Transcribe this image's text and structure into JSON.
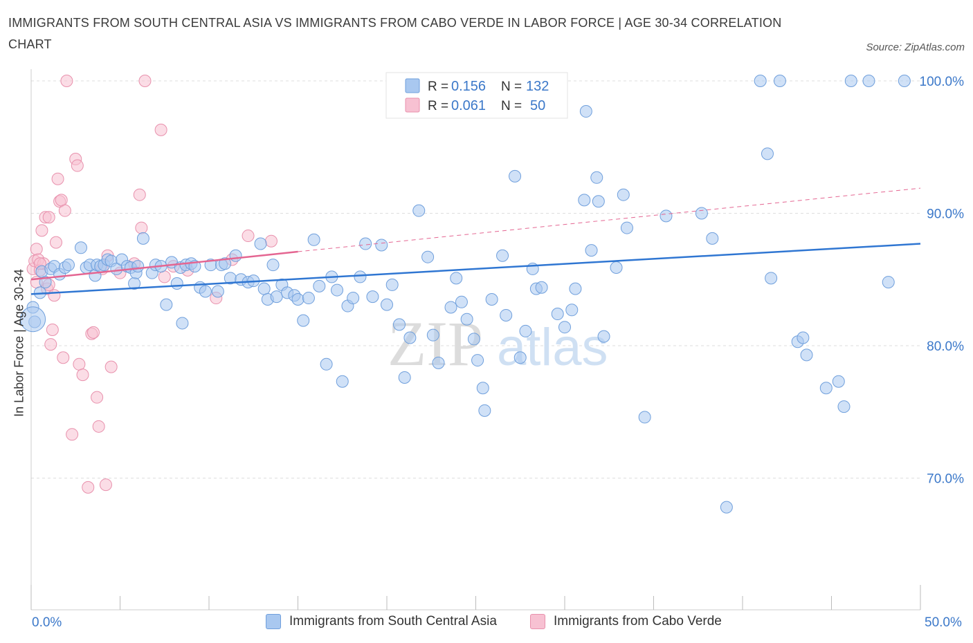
{
  "title": "IMMIGRANTS FROM SOUTH CENTRAL ASIA VS IMMIGRANTS FROM CABO VERDE IN LABOR FORCE | AGE 30-34 CORRELATION CHART",
  "source": "Source: ZipAtlas.com",
  "colors": {
    "blue_fill": "#a9c8f0",
    "blue_stroke": "#6f9fdc",
    "blue_line": "#2f76d2",
    "pink_fill": "#f7c1d2",
    "pink_stroke": "#e890ac",
    "pink_line": "#e46591",
    "axis_text": "#3b78c9",
    "watermark": "#d8d8d8"
  },
  "legend": {
    "series1": "Immigrants from South Central Asia",
    "series2": "Immigrants from Cabo Verde"
  },
  "stats": {
    "r_label": "R =",
    "n_label": "N =",
    "series1": {
      "r": "0.156",
      "n": "132"
    },
    "series2": {
      "r": "0.061",
      "n": "50"
    }
  },
  "watermark": {
    "zip": "ZIP",
    "atlas": "atlas"
  },
  "chart_data": {
    "type": "scatter",
    "ylabel": "In Labor Force | Age 30-34",
    "xlim": [
      0,
      50
    ],
    "ylim": [
      60,
      104
    ],
    "x_tick_labels": [
      "0.0%",
      "50.0%"
    ],
    "y_ticks": [
      70,
      80,
      90,
      100
    ],
    "y_tick_labels": [
      "70.0%",
      "80.0%",
      "90.0%",
      "100.0%"
    ],
    "grid": "horizontal dashed",
    "series": [
      {
        "name": "Immigrants from South Central Asia",
        "color": "#a9c8f0",
        "trend": {
          "x": [
            0,
            50
          ],
          "y": [
            83.9,
            87.7
          ]
        },
        "points": [
          [
            0.1,
            82.9
          ],
          [
            0.2,
            81.8
          ],
          [
            0.5,
            84.0
          ],
          [
            0.6,
            85.6
          ],
          [
            0.8,
            84.8
          ],
          [
            1.1,
            85.8
          ],
          [
            1.3,
            86.0
          ],
          [
            1.6,
            85.4
          ],
          [
            1.9,
            85.9
          ],
          [
            2.1,
            86.1
          ],
          [
            2.8,
            87.4
          ],
          [
            3.1,
            85.9
          ],
          [
            3.3,
            86.1
          ],
          [
            3.6,
            85.3
          ],
          [
            3.7,
            86.1
          ],
          [
            3.9,
            86.0
          ],
          [
            4.1,
            86.1
          ],
          [
            4.3,
            86.5
          ],
          [
            4.5,
            86.4
          ],
          [
            4.8,
            85.8
          ],
          [
            5.1,
            86.5
          ],
          [
            5.4,
            86.0
          ],
          [
            5.6,
            85.9
          ],
          [
            5.8,
            84.7
          ],
          [
            5.9,
            85.5
          ],
          [
            6.0,
            86.0
          ],
          [
            6.3,
            88.1
          ],
          [
            6.8,
            85.5
          ],
          [
            7.0,
            86.1
          ],
          [
            7.3,
            86.0
          ],
          [
            7.6,
            83.1
          ],
          [
            7.9,
            86.3
          ],
          [
            8.2,
            84.7
          ],
          [
            8.4,
            85.9
          ],
          [
            8.5,
            81.7
          ],
          [
            8.7,
            86.1
          ],
          [
            9.0,
            86.2
          ],
          [
            9.2,
            86.0
          ],
          [
            9.5,
            84.4
          ],
          [
            9.8,
            84.1
          ],
          [
            10.1,
            86.1
          ],
          [
            10.5,
            84.1
          ],
          [
            10.7,
            86.1
          ],
          [
            10.9,
            86.2
          ],
          [
            11.2,
            85.1
          ],
          [
            11.5,
            86.8
          ],
          [
            11.8,
            85.0
          ],
          [
            12.2,
            84.8
          ],
          [
            12.5,
            84.9
          ],
          [
            12.9,
            87.7
          ],
          [
            13.1,
            84.3
          ],
          [
            13.3,
            83.5
          ],
          [
            13.6,
            86.1
          ],
          [
            13.8,
            83.7
          ],
          [
            14.1,
            84.6
          ],
          [
            14.4,
            84.0
          ],
          [
            14.8,
            83.8
          ],
          [
            15.0,
            83.5
          ],
          [
            15.3,
            81.9
          ],
          [
            15.6,
            83.6
          ],
          [
            15.9,
            88.0
          ],
          [
            16.2,
            84.5
          ],
          [
            16.6,
            78.6
          ],
          [
            16.9,
            85.2
          ],
          [
            17.2,
            84.2
          ],
          [
            17.5,
            77.3
          ],
          [
            17.8,
            83.0
          ],
          [
            18.1,
            83.6
          ],
          [
            18.5,
            85.2
          ],
          [
            18.8,
            87.7
          ],
          [
            19.2,
            83.7
          ],
          [
            19.7,
            87.6
          ],
          [
            20.0,
            83.1
          ],
          [
            20.3,
            84.6
          ],
          [
            20.7,
            81.6
          ],
          [
            21.0,
            77.6
          ],
          [
            21.3,
            80.6
          ],
          [
            21.8,
            90.2
          ],
          [
            22.3,
            86.7
          ],
          [
            22.6,
            80.8
          ],
          [
            22.9,
            78.7
          ],
          [
            23.6,
            82.9
          ],
          [
            23.9,
            85.1
          ],
          [
            24.2,
            83.3
          ],
          [
            24.5,
            82.0
          ],
          [
            24.9,
            80.5
          ],
          [
            25.1,
            78.9
          ],
          [
            25.4,
            76.8
          ],
          [
            25.5,
            75.1
          ],
          [
            25.9,
            83.5
          ],
          [
            26.5,
            86.8
          ],
          [
            26.7,
            82.3
          ],
          [
            27.2,
            92.8
          ],
          [
            27.5,
            79.1
          ],
          [
            27.8,
            81.1
          ],
          [
            28.2,
            85.8
          ],
          [
            28.4,
            84.3
          ],
          [
            28.7,
            84.4
          ],
          [
            29.6,
            82.4
          ],
          [
            30.0,
            81.4
          ],
          [
            30.4,
            82.7
          ],
          [
            30.6,
            84.3
          ],
          [
            31.1,
            91.0
          ],
          [
            31.5,
            87.2
          ],
          [
            31.8,
            92.7
          ],
          [
            31.9,
            90.9
          ],
          [
            32.2,
            80.7
          ],
          [
            32.9,
            85.9
          ],
          [
            33.3,
            91.4
          ],
          [
            33.5,
            88.9
          ],
          [
            34.5,
            74.6
          ],
          [
            35.7,
            89.8
          ],
          [
            37.7,
            90.0
          ],
          [
            38.3,
            88.1
          ],
          [
            39.1,
            67.8
          ],
          [
            41.0,
            100.0
          ],
          [
            41.4,
            94.5
          ],
          [
            41.6,
            85.1
          ],
          [
            42.1,
            100.0
          ],
          [
            43.1,
            80.3
          ],
          [
            43.4,
            80.6
          ],
          [
            43.6,
            79.3
          ],
          [
            44.7,
            76.8
          ],
          [
            45.4,
            77.3
          ],
          [
            45.7,
            75.4
          ],
          [
            46.1,
            100.0
          ],
          [
            47.1,
            100.0
          ],
          [
            48.2,
            84.8
          ],
          [
            49.1,
            100.0
          ],
          [
            31.2,
            97.7
          ]
        ]
      },
      {
        "name": "Immigrants from Cabo Verde",
        "color": "#f7c1d2",
        "trend": {
          "x": [
            0,
            15
          ],
          "y": [
            85.0,
            87.1
          ]
        },
        "trend_dashed": {
          "x": [
            15,
            50
          ],
          "y": [
            87.1,
            91.9
          ]
        },
        "points": [
          [
            0.1,
            85.8
          ],
          [
            0.2,
            86.4
          ],
          [
            0.3,
            87.3
          ],
          [
            0.4,
            86.5
          ],
          [
            0.5,
            85.7
          ],
          [
            0.6,
            88.7
          ],
          [
            0.7,
            86.2
          ],
          [
            0.8,
            89.7
          ],
          [
            0.9,
            84.3
          ],
          [
            1.0,
            89.7
          ],
          [
            1.1,
            80.1
          ],
          [
            1.2,
            81.2
          ],
          [
            1.3,
            83.8
          ],
          [
            1.4,
            87.8
          ],
          [
            1.5,
            92.6
          ],
          [
            1.6,
            90.9
          ],
          [
            1.7,
            91.0
          ],
          [
            1.8,
            79.1
          ],
          [
            1.9,
            90.2
          ],
          [
            2.0,
            100.0
          ],
          [
            2.3,
            73.3
          ],
          [
            2.5,
            94.1
          ],
          [
            2.6,
            93.6
          ],
          [
            2.7,
            78.6
          ],
          [
            2.9,
            77.8
          ],
          [
            3.2,
            69.3
          ],
          [
            3.4,
            80.9
          ],
          [
            3.5,
            81.0
          ],
          [
            3.7,
            76.1
          ],
          [
            3.8,
            73.9
          ],
          [
            4.0,
            85.8
          ],
          [
            4.2,
            69.5
          ],
          [
            4.3,
            86.8
          ],
          [
            4.5,
            78.4
          ],
          [
            5.0,
            85.5
          ],
          [
            5.8,
            86.2
          ],
          [
            6.1,
            91.4
          ],
          [
            6.2,
            88.9
          ],
          [
            6.4,
            100.0
          ],
          [
            7.3,
            96.3
          ],
          [
            7.5,
            85.2
          ],
          [
            8.0,
            86.0
          ],
          [
            8.8,
            85.7
          ],
          [
            10.4,
            83.6
          ],
          [
            11.3,
            86.5
          ],
          [
            12.2,
            88.3
          ],
          [
            0.3,
            84.8
          ],
          [
            0.5,
            86.2
          ],
          [
            1.0,
            84.6
          ],
          [
            13.5,
            87.9
          ]
        ]
      }
    ]
  }
}
